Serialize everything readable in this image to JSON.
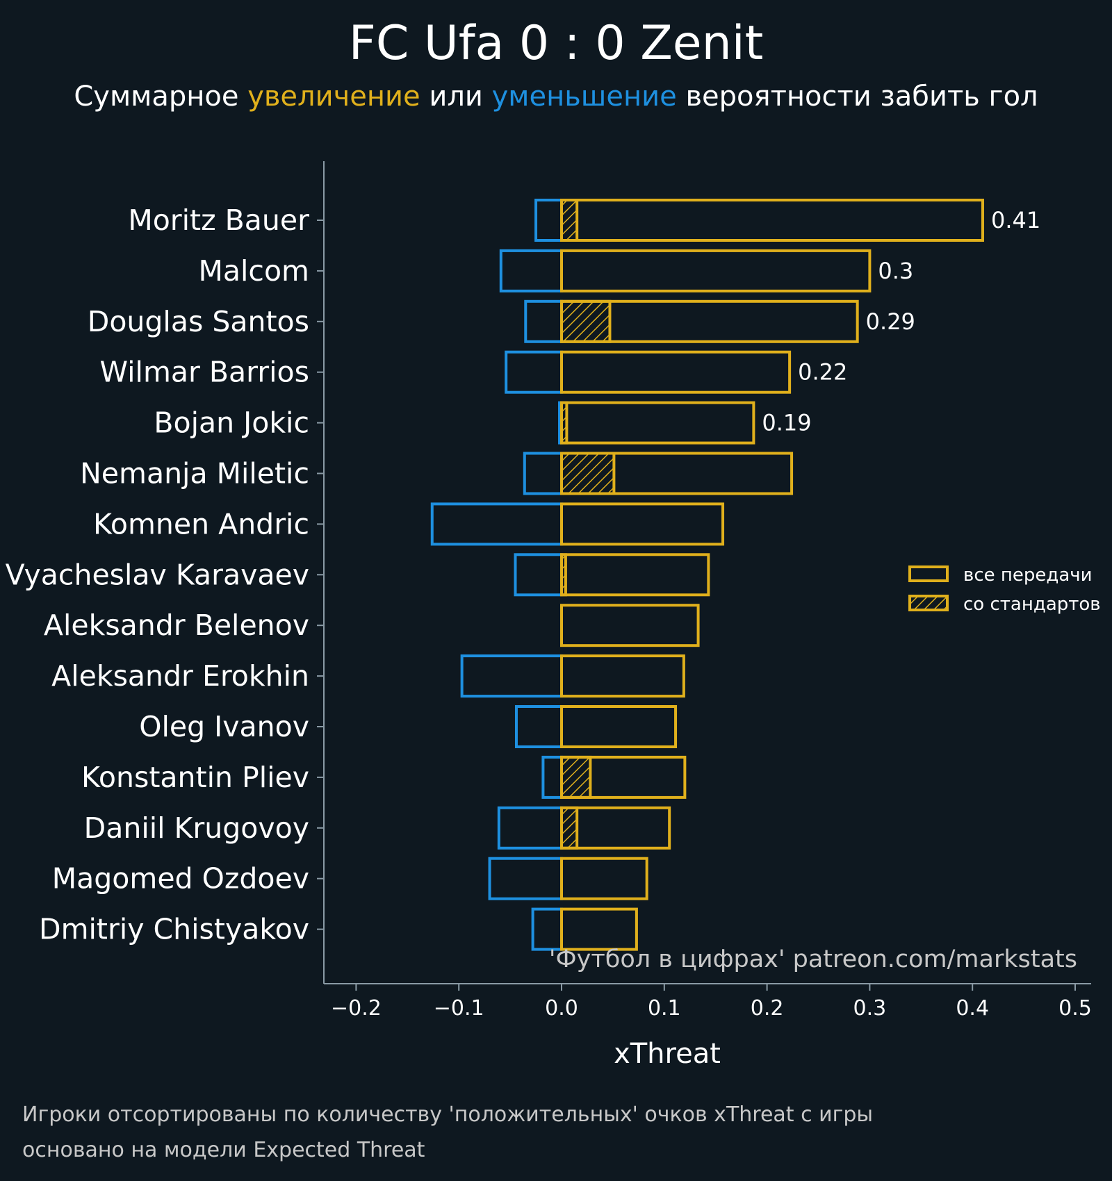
{
  "chart_data": {
    "type": "bar",
    "orientation": "horizontal",
    "title": "FC Ufa 0 : 0 Zenit",
    "subtitle": {
      "before": "Суммарное ",
      "increase": "увеличение",
      "middle": " или ",
      "decrease": "уменьшение",
      "after": " вероятности забить гол"
    },
    "xlabel": "xThreat",
    "xlim": [
      -0.23,
      0.52
    ],
    "xticks": [
      -0.2,
      -0.1,
      0.0,
      0.1,
      0.2,
      0.3,
      0.4,
      0.5
    ],
    "xtick_labels": [
      "−0.2",
      "−0.1",
      "0.0",
      "0.1",
      "0.2",
      "0.3",
      "0.4",
      "0.5"
    ],
    "categories": [
      "Moritz Bauer",
      "Malcom",
      "Douglas Santos",
      "Wilmar Barrios",
      "Bojan Jokic",
      "Nemanja Miletic",
      "Komnen Andric",
      "Vyacheslav Karavaev",
      "Aleksandr Belenov",
      "Aleksandr Erokhin",
      "Oleg Ivanov",
      "Konstantin Pliev",
      "Daniil Krugovoy",
      "Magomed Ozdoev",
      "Dmitriy Chistyakov"
    ],
    "series": [
      {
        "name": "positive",
        "values": [
          0.41,
          0.3,
          0.288,
          0.222,
          0.187,
          0.224,
          0.157,
          0.143,
          0.133,
          0.119,
          0.111,
          0.12,
          0.105,
          0.083,
          0.073
        ]
      },
      {
        "name": "negative",
        "values": [
          -0.025,
          -0.059,
          -0.035,
          -0.054,
          -0.002,
          -0.036,
          -0.126,
          -0.045,
          0.0,
          -0.097,
          -0.044,
          -0.018,
          -0.061,
          -0.07,
          -0.028
        ]
      },
      {
        "name": "со стандартов",
        "values": [
          0.015,
          0.0,
          0.047,
          0.0,
          0.005,
          0.051,
          0.0,
          0.004,
          0.0,
          0.0,
          0.0,
          0.028,
          0.015,
          0.0,
          0.0
        ]
      }
    ],
    "value_labels": [
      "0.41",
      "0.3",
      "0.29",
      "0.22",
      "0.19",
      "",
      "",
      "",
      "",
      "",
      "",
      "",
      "",
      "",
      ""
    ],
    "legend": {
      "position": "right",
      "items": [
        "все передачи",
        "со стандартов"
      ]
    },
    "watermark": "'Футбол в цифрах' patreon.com/markstats",
    "footnotes": [
      "Игроки отсортированы по количеству 'положительных' очков xThreat с игры",
      "основано на модели Expected Threat"
    ]
  },
  "colors": {
    "background": "#0e1820",
    "positive": "#e0b01c",
    "negative": "#1e90e0",
    "axis": "#8a9aa5",
    "text": "#ffffff",
    "muted": "#c8c8c8"
  }
}
